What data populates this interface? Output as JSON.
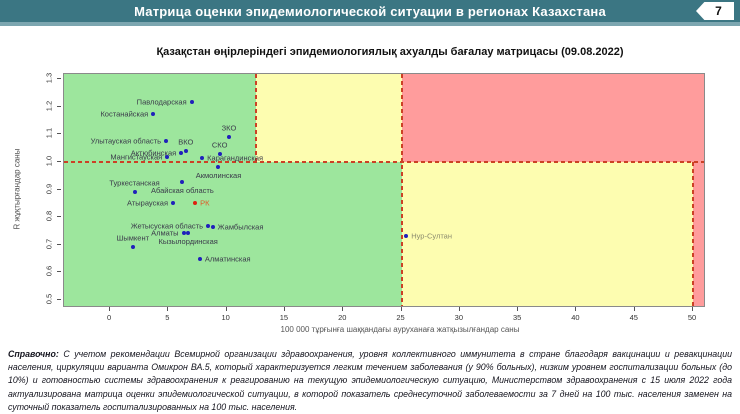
{
  "header": {
    "title": "Матрица оценки эпидемиологической ситуации в регионах Казахстана",
    "page_number": "7"
  },
  "chart_data": {
    "type": "scatter",
    "title": "Қазақстан өңірлеріндегі эпидемиологиялық ахуалды бағалау матрицасы  (09.08.2022)",
    "xlabel": "100 000 тұрғынға шаққандағы ауруханаға жатқызылғандар саны",
    "ylabel": "R жұқтырғандар саны",
    "x_ticks": [
      0,
      5,
      10,
      15,
      20,
      25,
      30,
      35,
      40,
      45,
      50
    ],
    "y_ticks": [
      0.5,
      0.6,
      0.7,
      0.8,
      0.9,
      1.0,
      1.1,
      1.2,
      1.3
    ],
    "xlim": [
      -3.95,
      50.94
    ],
    "ylim": [
      0.478,
      1.319
    ],
    "grid": false,
    "thresholds": {
      "r_line": 1.0,
      "upper_x": [
        12.5,
        25
      ],
      "lower_x": [
        25,
        50
      ]
    },
    "zone_colors": {
      "green": "#9DE69D",
      "yellow": "#FDFDB0",
      "red": "#FF9C9C"
    },
    "threshold_line_color": "#CC4125",
    "point_colors": {
      "region": "#2020BB",
      "rk": "#DD2211"
    },
    "label_colors": {
      "default": "#3A3A4A",
      "rk": "#E05A28",
      "nur_sultan": "#8C8C6E"
    },
    "points": [
      {
        "name": "Павлодарская",
        "x": 7.0,
        "y": 1.218,
        "label": "left"
      },
      {
        "name": "Костанайская",
        "x": 3.7,
        "y": 1.173,
        "label": "left"
      },
      {
        "name": "ЗКО",
        "x": 10.2,
        "y": 1.092,
        "label": "above"
      },
      {
        "name": "Улытауская область",
        "x": 4.8,
        "y": 1.076,
        "label": "left"
      },
      {
        "name": "ВКО",
        "x": 6.5,
        "y": 1.041,
        "label": "above"
      },
      {
        "name": "Актюбинская",
        "x": 6.1,
        "y": 1.032,
        "label": "left"
      },
      {
        "name": "СКО",
        "x": 9.4,
        "y": 1.029,
        "label": "above"
      },
      {
        "name": "Мангистауская",
        "x": 4.9,
        "y": 1.019,
        "label": "left"
      },
      {
        "name": "Карагандинская",
        "x": 7.9,
        "y": 1.013,
        "label": "right"
      },
      {
        "name": "Акмолинская",
        "x": 9.3,
        "y": 0.982,
        "label": "below"
      },
      {
        "name": "Абайская область",
        "x": 6.2,
        "y": 0.928,
        "label": "below"
      },
      {
        "name": "Туркестанская",
        "x": 2.1,
        "y": 0.892,
        "label": "above"
      },
      {
        "name": "Атырауская",
        "x": 5.4,
        "y": 0.85,
        "label": "left"
      },
      {
        "name": "РК",
        "x": 7.3,
        "y": 0.85,
        "label": "right",
        "kind": "rk"
      },
      {
        "name": "Жетысуская область",
        "x": 8.4,
        "y": 0.768,
        "label": "left"
      },
      {
        "name": "Жамбылская",
        "x": 8.8,
        "y": 0.763,
        "label": "right"
      },
      {
        "name": "Алматы",
        "x": 6.3,
        "y": 0.742,
        "label": "left"
      },
      {
        "name": "Кызылординская",
        "x": 6.7,
        "y": 0.742,
        "label": "below"
      },
      {
        "name": "Нур-Султан",
        "x": 25.4,
        "y": 0.73,
        "label": "right",
        "kind": "nur_sultan"
      },
      {
        "name": "Шымкент",
        "x": 1.95,
        "y": 0.692,
        "label": "above"
      },
      {
        "name": "Алматинская",
        "x": 7.7,
        "y": 0.648,
        "label": "right"
      }
    ]
  },
  "footnote": {
    "lead": "Справочно:",
    "text": " С учетом рекомендации Всемирной организации здравоохранения, уровня коллективного иммунитета в стране благодаря вакцинации и ревакцинации населения, циркуляции варианта Омикрон ВА.5, который характеризуется легким течением заболевания (у 90% больных), низким уровнем госпитализации больных (до 10%) и готовностью системы здравоохранения к реагированию на текущую эпидемиологическую ситуацию, Министерством здравоохранения с 15 июля 2022 года актуализирована матрица оценки эпидемиологической ситуации, в которой показатель  среднесуточной заболеваемости за 7 дней на 100 тыс. населения заменен на  суточный показатель госпитализированных на 100 тыс. населения."
  }
}
